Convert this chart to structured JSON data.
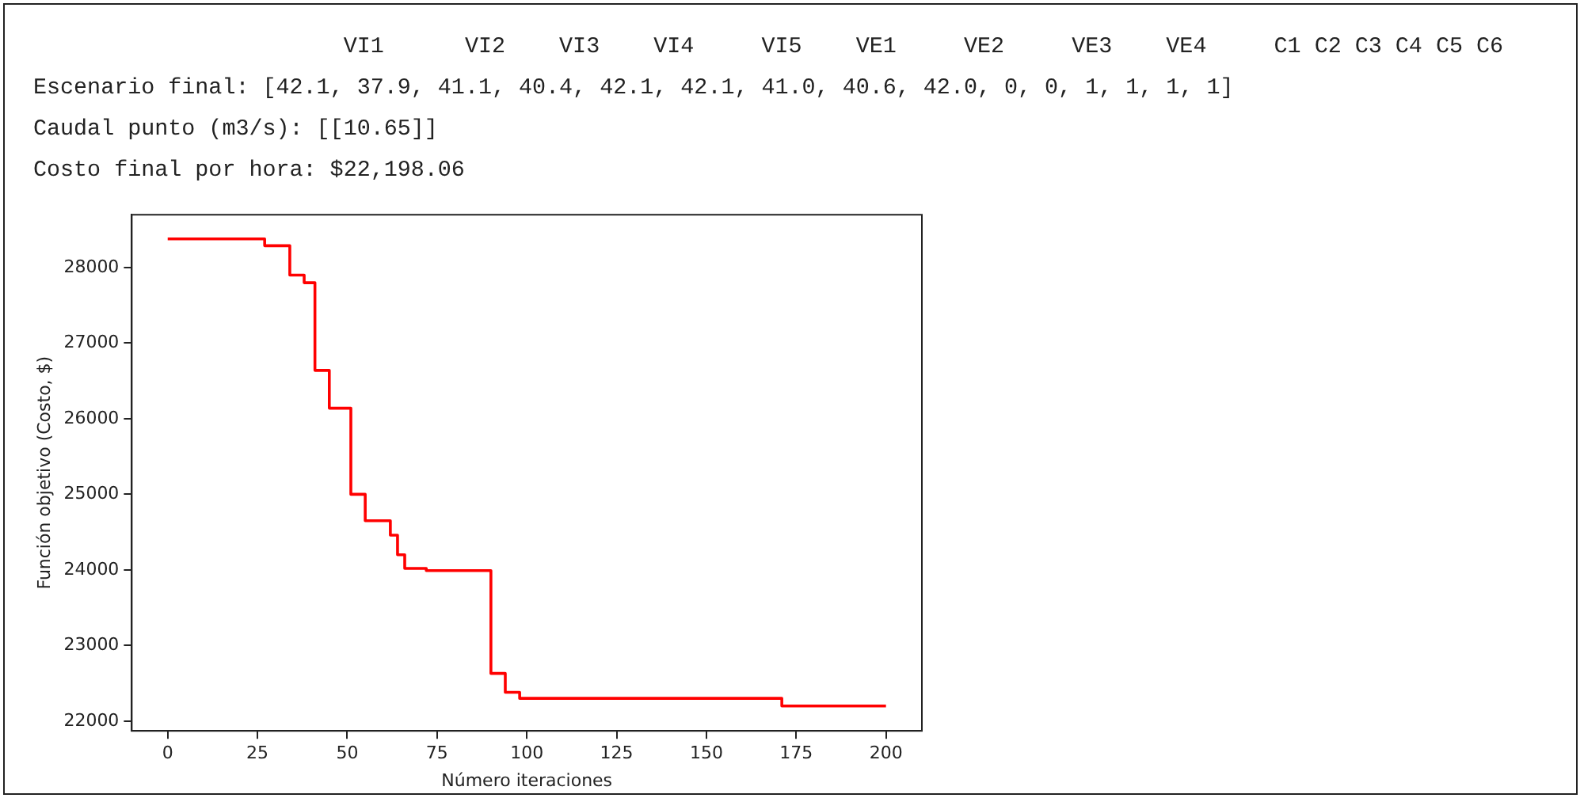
{
  "chart_data": {
    "type": "step",
    "annotations": [
      "                       VI1      VI2    VI3    VI4     VI5    VE1     VE2     VE3    VE4     C1 C2 C3 C4 C5 C6",
      "Escenario final: [42.1, 37.9, 41.1, 40.4, 42.1, 42.1, 41.0, 40.6, 42.0, 0, 0, 1, 1, 1, 1]",
      "Caudal punto (m3/s): [[10.65]]",
      "Costo final por hora: $22,198.06"
    ],
    "xlabel": "Número iteraciones",
    "ylabel": "Función objetivo (Costo, $)",
    "x": [
      0,
      27,
      34,
      38,
      41,
      45,
      51,
      55,
      62,
      64,
      66,
      72,
      90,
      94,
      98,
      171,
      200
    ],
    "series": [
      {
        "color": "#ff0000",
        "values": [
          28380,
          28290,
          27900,
          27800,
          26640,
          26140,
          25000,
          24650,
          24460,
          24200,
          24020,
          23990,
          22630,
          22380,
          22300,
          22200,
          22200
        ]
      }
    ],
    "xlim": [
      -10,
      210
    ],
    "xticks": [
      0,
      25,
      50,
      75,
      100,
      125,
      150,
      175,
      200
    ],
    "ylim": [
      21870,
      28700
    ],
    "yticks": [
      22000,
      23000,
      24000,
      25000,
      26000,
      27000,
      28000
    ],
    "grid": false,
    "legend": false
  }
}
